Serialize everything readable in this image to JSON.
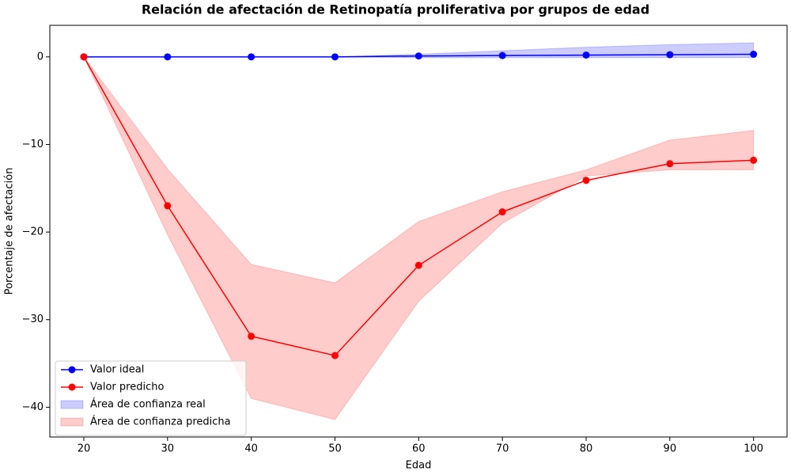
{
  "chart_data": {
    "type": "line",
    "title": "Relación de afectación de Retinopatía proliferativa por grupos de edad",
    "xlabel": "Edad",
    "ylabel": "Porcentaje de afectación",
    "x": [
      20,
      30,
      40,
      50,
      60,
      70,
      80,
      90,
      100
    ],
    "series": [
      {
        "name": "Valor ideal",
        "color": "#0000ff",
        "values": [
          0,
          0,
          0,
          0,
          0.1,
          0.15,
          0.2,
          0.25,
          0.3
        ]
      },
      {
        "name": "Valor predicho",
        "color": "#ff0000",
        "values": [
          0,
          -17.0,
          -31.9,
          -34.1,
          -23.8,
          -17.7,
          -14.1,
          -12.2,
          -11.8
        ]
      }
    ],
    "bands": [
      {
        "name": "Área de confianza real",
        "color": "#0000ff",
        "lower": [
          0,
          0,
          0,
          0,
          -0.1,
          -0.1,
          -0.1,
          -0.1,
          -0.1
        ],
        "upper": [
          0,
          0,
          0,
          0,
          0.3,
          0.7,
          1.1,
          1.4,
          1.6
        ]
      },
      {
        "name": "Área de confianza predicha",
        "color": "#ff0000",
        "lower": [
          0,
          -20.3,
          -39.0,
          -41.4,
          -27.9,
          -19.0,
          -13.6,
          -12.9,
          -12.9
        ],
        "upper": [
          0,
          -12.8,
          -23.7,
          -25.8,
          -18.8,
          -15.4,
          -12.9,
          -9.5,
          -8.4
        ]
      }
    ],
    "xlim": [
      15.94,
      104
    ],
    "ylim": [
      -43.4,
      3.6
    ],
    "xticks": [
      20,
      30,
      40,
      50,
      60,
      70,
      80,
      90,
      100
    ],
    "yticks": [
      0,
      {
        "value": -10,
        "label": "−10"
      },
      {
        "value": -20,
        "label": "−20"
      },
      {
        "value": -30,
        "label": "−30"
      },
      {
        "value": -40,
        "label": "−40"
      }
    ],
    "legend": "lower left"
  }
}
